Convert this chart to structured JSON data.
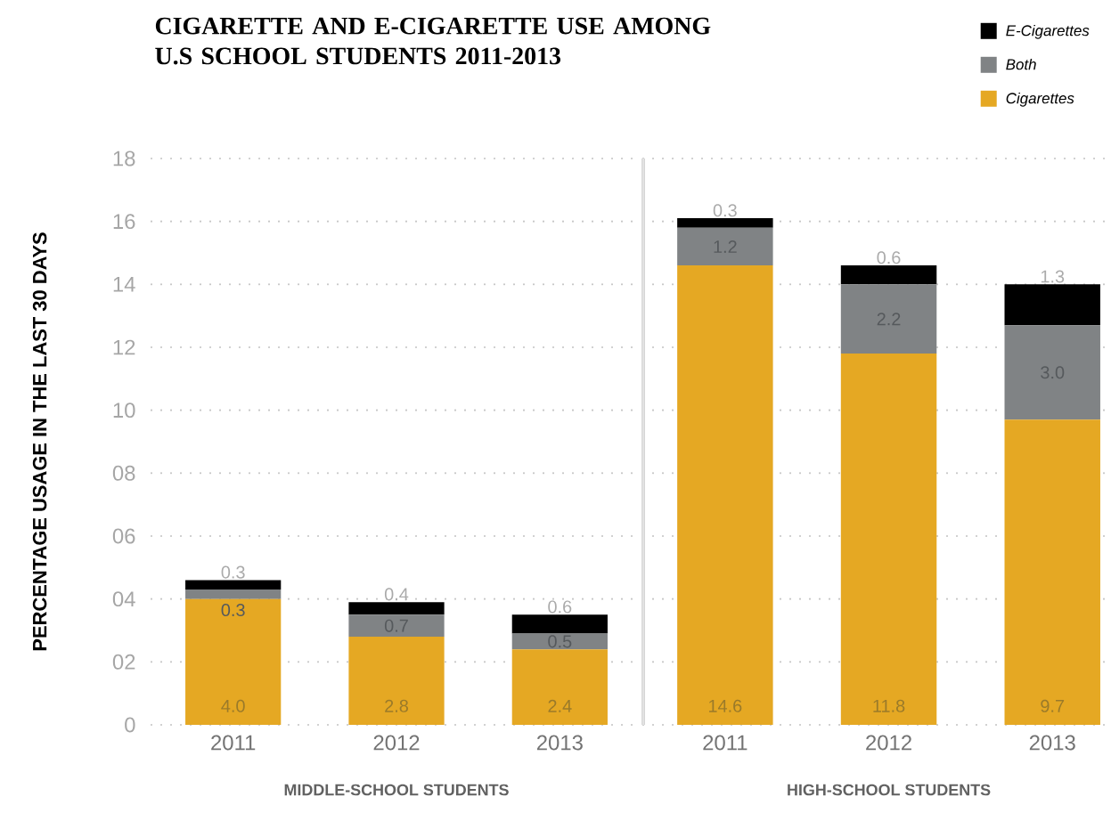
{
  "chart_data": [
    {
      "type": "bar",
      "title": "CIGARETTE AND E-CIGARETTE USE AMONG U.S SCHOOL STUDENTS 2011-2013",
      "xlabel": "MIDDLE-SCHOOL STUDENTS",
      "ylabel": "PERCENTAGE USAGE IN THE LAST 30 DAYS",
      "categories": [
        "2011",
        "2012",
        "2013"
      ],
      "stacked": true,
      "grid": "y",
      "ylim": [
        0,
        18
      ],
      "yticks": [
        0,
        {
          "value": 2,
          "label": "02"
        },
        {
          "value": 4,
          "label": "04"
        },
        {
          "value": 6,
          "label": "06"
        },
        {
          "value": 8,
          "label": "08"
        },
        10,
        12,
        14,
        16,
        18
      ],
      "series": [
        {
          "color": "#e5a823",
          "values": [
            4.0,
            2.8,
            2.4
          ],
          "value_labels": [
            "4.0",
            "2.8",
            "2.4"
          ]
        },
        {
          "color": "#808385",
          "values": [
            0.3,
            0.7,
            0.5
          ],
          "value_labels": [
            "0.3",
            "0.7",
            "0.5"
          ]
        },
        {
          "color": "#000000",
          "values": [
            0.3,
            0.4,
            0.6
          ],
          "value_labels": [
            "0.3",
            "0.4",
            "0.6"
          ]
        }
      ]
    },
    {
      "type": "bar",
      "xlabel": "HIGH-SCHOOL STUDENTS",
      "categories": [
        "2011",
        "2012",
        "2013"
      ],
      "stacked": true,
      "grid": "y",
      "legend": "top right",
      "tick_labels": "x",
      "ylim": [
        0,
        18
      ],
      "yticks": [
        0,
        2,
        4,
        6,
        8,
        10,
        12,
        14,
        16,
        18
      ],
      "series": [
        {
          "name": "Cigarettes",
          "color": "#e5a823",
          "values": [
            14.6,
            11.8,
            9.7
          ],
          "value_labels": [
            "14.6",
            "11.8",
            "9.7"
          ]
        },
        {
          "name": "Both",
          "color": "#808385",
          "values": [
            1.2,
            2.2,
            3.0
          ],
          "value_labels": [
            "1.2",
            "2.2",
            "3.0"
          ]
        },
        {
          "name": "E-Cigarettes",
          "color": "#000000",
          "values": [
            0.3,
            0.6,
            1.3
          ],
          "value_labels": [
            "0.3",
            "0.6",
            "1.3"
          ]
        }
      ]
    }
  ]
}
